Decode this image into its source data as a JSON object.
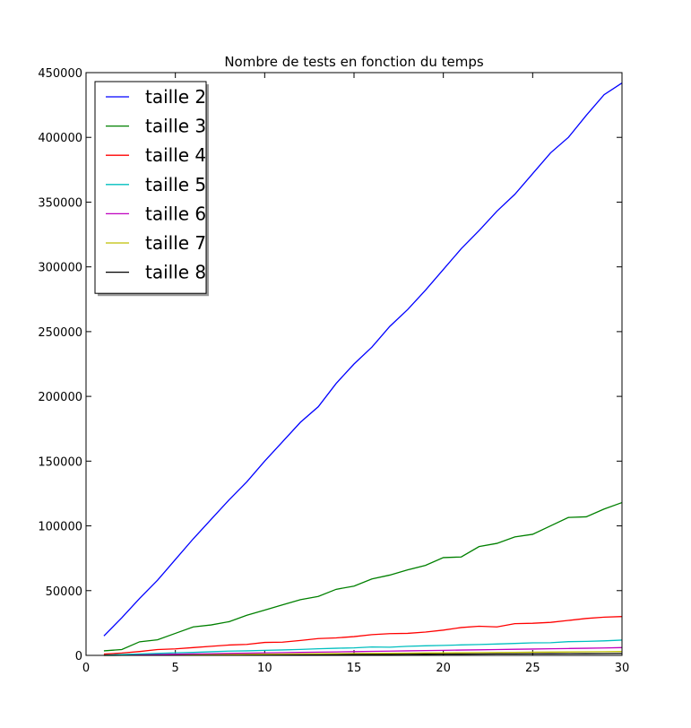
{
  "chart_data": {
    "type": "line",
    "title": "Nombre de tests en fonction du temps",
    "xlabel": "",
    "ylabel": "",
    "xlim": [
      0,
      30
    ],
    "ylim": [
      0,
      450000
    ],
    "x_ticks": [
      0,
      5,
      10,
      15,
      20,
      25,
      30
    ],
    "y_ticks": [
      0,
      50000,
      100000,
      150000,
      200000,
      250000,
      300000,
      350000,
      400000,
      450000
    ],
    "grid": false,
    "legend_position": "top-left",
    "x": [
      1,
      2,
      3,
      4,
      5,
      6,
      7,
      8,
      9,
      10,
      11,
      12,
      13,
      14,
      15,
      16,
      17,
      18,
      19,
      20,
      21,
      22,
      23,
      24,
      25,
      26,
      27,
      28,
      29,
      30
    ],
    "series": [
      {
        "name": "taille 2",
        "color": "#0000ff",
        "values": [
          15000,
          29000,
          44000,
          58000,
          74000,
          90000,
          105000,
          120000,
          134000,
          150000,
          165000,
          180000,
          192000,
          210000,
          225000,
          238000,
          254000,
          267000,
          282000,
          298000,
          314000,
          328000,
          343000,
          356000,
          372000,
          388000,
          400000,
          417000,
          433000,
          442000
        ]
      },
      {
        "name": "taille 3",
        "color": "#008000",
        "values": [
          3500,
          4500,
          10500,
          12000,
          17000,
          22000,
          23500,
          26000,
          31000,
          35000,
          39000,
          43000,
          45500,
          51000,
          53500,
          59000,
          62000,
          66000,
          69500,
          75500,
          76000,
          84000,
          86500,
          91500,
          93500,
          100000,
          106500,
          107000,
          113000,
          118000
        ]
      },
      {
        "name": "taille 4",
        "color": "#ff0000",
        "values": [
          1000,
          1800,
          3000,
          4500,
          5000,
          6000,
          7000,
          8000,
          8500,
          10000,
          10200,
          11500,
          13000,
          13500,
          14500,
          16000,
          16800,
          17000,
          18000,
          19500,
          21500,
          22500,
          22000,
          24500,
          24800,
          25500,
          27000,
          28500,
          29500,
          30000
        ]
      },
      {
        "name": "taille 5",
        "color": "#00bfbf",
        "values": [
          300,
          700,
          1100,
          1500,
          2000,
          2300,
          2800,
          3300,
          3500,
          3900,
          4200,
          4600,
          5100,
          5500,
          5800,
          6500,
          6300,
          7000,
          7400,
          7700,
          8100,
          8400,
          8800,
          9200,
          9700,
          9800,
          10600,
          10800,
          11200,
          11800
        ]
      },
      {
        "name": "taille 6",
        "color": "#bf00bf",
        "values": [
          100,
          300,
          500,
          700,
          900,
          1100,
          1300,
          1500,
          1700,
          1900,
          2100,
          2300,
          2500,
          2700,
          2900,
          3100,
          3300,
          3500,
          3700,
          3900,
          4100,
          4300,
          4500,
          4700,
          4900,
          5100,
          5300,
          5500,
          5700,
          6000
        ]
      },
      {
        "name": "taille 7",
        "color": "#bfbf00",
        "values": [
          50,
          150,
          250,
          350,
          450,
          550,
          650,
          750,
          850,
          950,
          1050,
          1150,
          1250,
          1350,
          1450,
          1550,
          1650,
          1750,
          1850,
          1950,
          2050,
          2150,
          2250,
          2350,
          2450,
          2550,
          2650,
          2750,
          2850,
          3000
        ]
      },
      {
        "name": "taille 8",
        "color": "#000000",
        "values": [
          20,
          60,
          100,
          150,
          200,
          250,
          300,
          350,
          400,
          450,
          500,
          550,
          600,
          650,
          700,
          750,
          800,
          850,
          900,
          950,
          1000,
          1050,
          1100,
          1150,
          1200,
          1250,
          1300,
          1350,
          1400,
          1450
        ]
      }
    ]
  }
}
